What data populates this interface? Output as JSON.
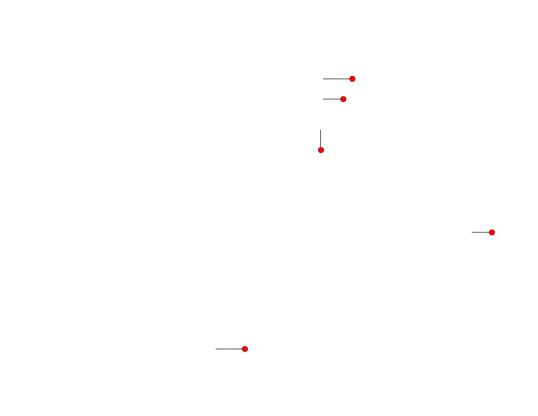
{
  "colors": {
    "marker_fill": "#ff0000",
    "line": "#333333"
  }
}
